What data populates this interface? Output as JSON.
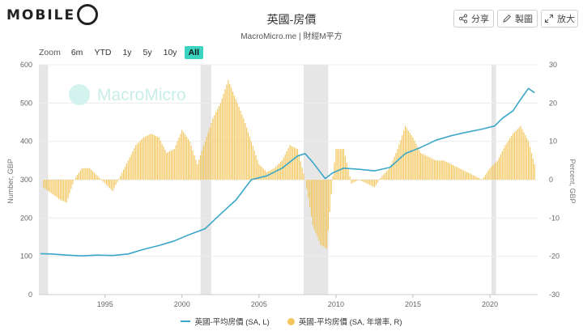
{
  "header": {
    "logo_text": "MOBILE",
    "title": "英國-房價",
    "subtitle": "MacroMicro.me | 財經M平方",
    "watermark": "MacroMicro"
  },
  "toolbar": {
    "share_label": "分享",
    "draw_label": "製圖",
    "expand_label": "放大"
  },
  "zoom": {
    "label": "Zoom",
    "options": [
      "6m",
      "YTD",
      "1y",
      "5y",
      "10y",
      "All"
    ],
    "active": "All"
  },
  "colors": {
    "line": "#3aa6c8",
    "bar": "#f3c65c",
    "recession": "#e6e6e6",
    "active_button": "#3ad3c0"
  },
  "chart_data": {
    "type": "bar+line",
    "x_range": [
      1990.7,
      2023.1
    ],
    "x_ticks": [
      1995,
      2000,
      2005,
      2010,
      2015,
      2020
    ],
    "x_tick_labels": [
      "1995",
      "2000",
      "2005",
      "2010",
      "2015",
      "2020"
    ],
    "y_left": {
      "label": "Number, GBP",
      "min": 0,
      "max": 600,
      "ticks": [
        0,
        100,
        200,
        300,
        400,
        500,
        600
      ]
    },
    "y_right": {
      "label": "Percent, GBP",
      "min": -30,
      "max": 30,
      "ticks": [
        -30,
        -20,
        -10,
        0,
        10,
        20,
        30
      ]
    },
    "recession_bands": [
      [
        1990.7,
        1991.3
      ],
      [
        2001.2,
        2001.9
      ],
      [
        2007.9,
        2009.5
      ],
      [
        2020.1,
        2020.4
      ]
    ],
    "series": [
      {
        "name": "英國-平均房價 (SA, L)",
        "kind": "line",
        "axis": "left",
        "points": [
          [
            1990.8,
            107
          ],
          [
            1991.5,
            106
          ],
          [
            1992.5,
            103
          ],
          [
            1993.5,
            101
          ],
          [
            1994.5,
            103
          ],
          [
            1995.5,
            102
          ],
          [
            1996.5,
            106
          ],
          [
            1997.5,
            118
          ],
          [
            1998.5,
            128
          ],
          [
            1999.5,
            140
          ],
          [
            2000.5,
            157
          ],
          [
            2001.5,
            172
          ],
          [
            2002.5,
            210
          ],
          [
            2003.5,
            247
          ],
          [
            2004.5,
            300
          ],
          [
            2005.5,
            310
          ],
          [
            2006.5,
            330
          ],
          [
            2007.5,
            362
          ],
          [
            2008.0,
            368
          ],
          [
            2008.5,
            345
          ],
          [
            2009.3,
            303
          ],
          [
            2009.8,
            318
          ],
          [
            2010.5,
            330
          ],
          [
            2011.5,
            327
          ],
          [
            2012.5,
            323
          ],
          [
            2013.5,
            332
          ],
          [
            2014.5,
            368
          ],
          [
            2015.5,
            384
          ],
          [
            2016.5,
            403
          ],
          [
            2017.5,
            415
          ],
          [
            2018.5,
            424
          ],
          [
            2019.5,
            432
          ],
          [
            2020.3,
            440
          ],
          [
            2020.8,
            460
          ],
          [
            2021.5,
            480
          ],
          [
            2022.0,
            510
          ],
          [
            2022.5,
            538
          ],
          [
            2022.9,
            527
          ]
        ]
      },
      {
        "name": "英國-平均房價 (SA, 年增率, R)",
        "kind": "bar",
        "axis": "right",
        "points": [
          [
            1991.0,
            -2
          ],
          [
            1992.0,
            -5
          ],
          [
            1992.5,
            -6
          ],
          [
            1993.0,
            0
          ],
          [
            1993.5,
            3
          ],
          [
            1994.0,
            3
          ],
          [
            1994.5,
            1
          ],
          [
            1995.0,
            -1
          ],
          [
            1995.5,
            -3
          ],
          [
            1996.0,
            1
          ],
          [
            1996.5,
            5
          ],
          [
            1997.0,
            9
          ],
          [
            1997.5,
            11
          ],
          [
            1998.0,
            12
          ],
          [
            1998.5,
            11
          ],
          [
            1999.0,
            7
          ],
          [
            1999.5,
            8
          ],
          [
            2000.0,
            13
          ],
          [
            2000.5,
            10
          ],
          [
            2001.0,
            4
          ],
          [
            2001.5,
            10
          ],
          [
            2002.0,
            16
          ],
          [
            2002.5,
            20
          ],
          [
            2003.0,
            26
          ],
          [
            2003.5,
            21
          ],
          [
            2004.0,
            16
          ],
          [
            2004.5,
            10
          ],
          [
            2005.0,
            4
          ],
          [
            2005.5,
            2
          ],
          [
            2006.0,
            3
          ],
          [
            2006.5,
            5
          ],
          [
            2007.0,
            9
          ],
          [
            2007.5,
            8
          ],
          [
            2008.0,
            0
          ],
          [
            2008.5,
            -12
          ],
          [
            2009.0,
            -17
          ],
          [
            2009.4,
            -18
          ],
          [
            2009.8,
            1
          ],
          [
            2010.0,
            8
          ],
          [
            2010.5,
            8
          ],
          [
            2011.0,
            -1
          ],
          [
            2011.5,
            0
          ],
          [
            2012.0,
            -1
          ],
          [
            2012.5,
            -2
          ],
          [
            2013.0,
            1
          ],
          [
            2013.5,
            3
          ],
          [
            2014.0,
            8
          ],
          [
            2014.5,
            14
          ],
          [
            2015.0,
            11
          ],
          [
            2015.5,
            7
          ],
          [
            2016.0,
            6
          ],
          [
            2016.5,
            5
          ],
          [
            2017.0,
            5
          ],
          [
            2017.5,
            4
          ],
          [
            2018.0,
            3
          ],
          [
            2018.5,
            2
          ],
          [
            2019.0,
            1
          ],
          [
            2019.5,
            0
          ],
          [
            2020.0,
            3
          ],
          [
            2020.5,
            5
          ],
          [
            2021.0,
            9
          ],
          [
            2021.5,
            12
          ],
          [
            2022.0,
            14
          ],
          [
            2022.5,
            10
          ],
          [
            2022.9,
            4
          ]
        ]
      }
    ]
  }
}
